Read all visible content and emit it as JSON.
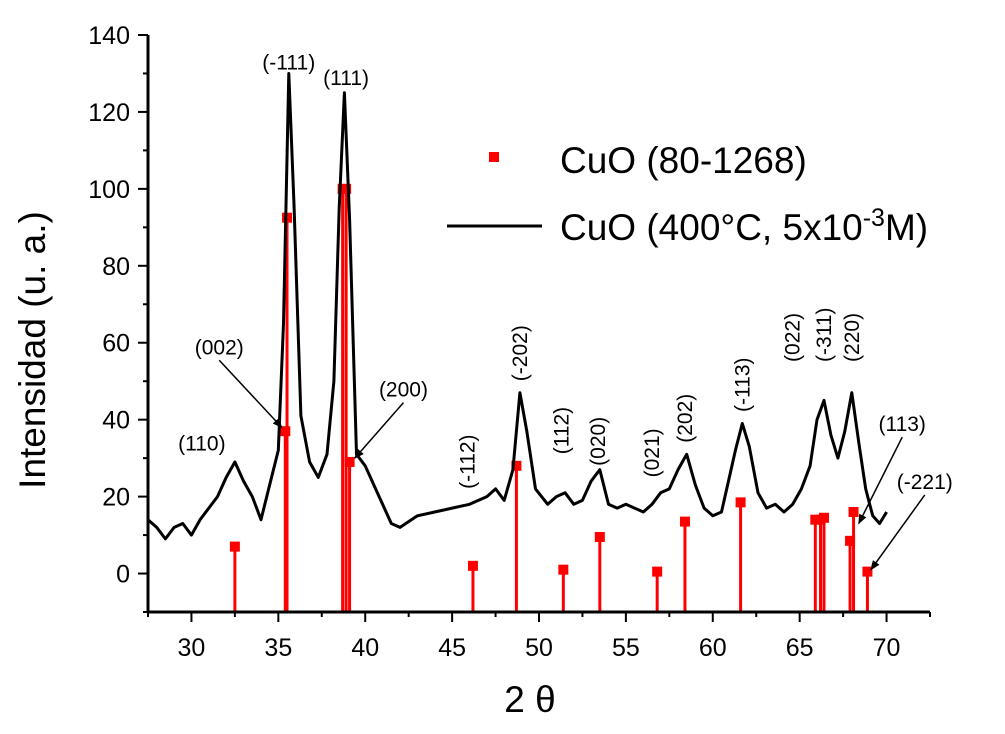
{
  "chart_data": {
    "type": "line",
    "xlabel": "2 θ",
    "ylabel": "Intensidad (u. a.)",
    "xlim": [
      27.5,
      72.5
    ],
    "ylim": [
      -10,
      140
    ],
    "xticks": [
      30,
      35,
      40,
      45,
      50,
      55,
      60,
      65,
      70
    ],
    "yticks": [
      0,
      20,
      40,
      60,
      80,
      100,
      120,
      140
    ],
    "legend": {
      "placement": "top-right",
      "entries": [
        {
          "label": "CuO (80-1268)",
          "marker": "square",
          "color": "#ff0000"
        },
        {
          "label_base": "CuO (400°C, 5x10",
          "label_sup": "-3",
          "label_end": "M)",
          "marker": "line",
          "color": "#000000"
        }
      ]
    },
    "series": [
      {
        "name": "CuO (80-1268)",
        "style": "stick",
        "color": "#ff0000",
        "x": [
          32.5,
          35.4,
          35.5,
          38.7,
          38.9,
          39.1,
          46.2,
          48.7,
          51.4,
          53.5,
          56.8,
          58.4,
          61.6,
          65.9,
          66.2,
          66.4,
          67.9,
          68.1,
          68.9
        ],
        "y": [
          7,
          37,
          92.5,
          100,
          100,
          29,
          2,
          28,
          1,
          9.5,
          0.5,
          13.5,
          18.5,
          14,
          14,
          14.5,
          8.5,
          16,
          0.5
        ]
      },
      {
        "name": "CuO (400°C, 5x10-3M)",
        "style": "line",
        "color": "#000000",
        "x": [
          27.5,
          28.0,
          28.5,
          29.0,
          29.5,
          30.0,
          30.5,
          31.0,
          31.5,
          32.0,
          32.5,
          33.0,
          33.5,
          34.0,
          34.5,
          35.0,
          35.3,
          35.6,
          35.9,
          36.3,
          36.8,
          37.3,
          37.8,
          38.2,
          38.5,
          38.8,
          39.1,
          39.5,
          40.0,
          40.5,
          41.0,
          41.5,
          42.0,
          43.0,
          44.0,
          45.0,
          46.0,
          47.0,
          47.5,
          48.0,
          48.5,
          48.9,
          49.3,
          49.8,
          50.5,
          51.0,
          51.5,
          52.0,
          52.5,
          53.0,
          53.5,
          54.0,
          54.5,
          55.0,
          55.5,
          56.0,
          56.5,
          57.0,
          57.5,
          58.0,
          58.5,
          59.0,
          59.5,
          60.0,
          60.5,
          61.0,
          61.3,
          61.7,
          62.1,
          62.6,
          63.1,
          63.6,
          64.1,
          64.6,
          65.1,
          65.6,
          66.0,
          66.4,
          66.8,
          67.2,
          67.6,
          68.0,
          68.4,
          68.8,
          69.2,
          69.6,
          70.0
        ],
        "y": [
          14,
          12,
          9,
          12,
          13,
          10,
          14,
          17,
          20,
          25,
          29,
          24,
          20,
          14,
          23,
          32,
          65,
          130,
          96,
          41,
          29,
          25,
          31,
          50,
          95,
          125,
          92,
          31,
          28,
          23,
          18,
          13,
          12,
          15,
          16,
          17,
          18,
          20,
          22,
          19,
          27,
          47,
          37,
          22,
          18,
          20,
          21,
          18,
          19,
          24,
          27,
          18,
          17,
          18,
          17,
          16,
          18,
          21,
          22,
          27,
          31,
          23,
          17,
          15,
          16,
          26,
          32,
          39,
          33,
          21,
          17,
          18,
          16,
          18,
          22,
          28,
          40,
          45,
          36,
          30,
          37,
          47,
          34,
          22,
          15,
          13,
          16
        ]
      }
    ],
    "annotations": [
      {
        "text": "(-111)",
        "x": 35.6,
        "y": 131,
        "rotate": 0
      },
      {
        "text": "(111)",
        "x": 38.9,
        "y": 127,
        "rotate": 0
      },
      {
        "text": "(110)",
        "x": 30.6,
        "y": 32,
        "rotate": 0
      },
      {
        "text": "(002)",
        "x": 31.6,
        "y": 57,
        "rotate": 0,
        "arrow_to": [
          35.2,
          38
        ]
      },
      {
        "text": "(200)",
        "x": 42.2,
        "y": 46,
        "rotate": 0,
        "arrow_to": [
          39.4,
          30
        ]
      },
      {
        "text": "(-112)",
        "x": 46.3,
        "y": 22,
        "rotate": -90
      },
      {
        "text": "(-202)",
        "x": 49.3,
        "y": 50,
        "rotate": -90
      },
      {
        "text": "(112)",
        "x": 51.7,
        "y": 31,
        "rotate": -90
      },
      {
        "text": "(020)",
        "x": 53.8,
        "y": 28,
        "rotate": -90
      },
      {
        "text": "(021)",
        "x": 56.9,
        "y": 25,
        "rotate": -90
      },
      {
        "text": "(202)",
        "x": 58.8,
        "y": 34,
        "rotate": -90
      },
      {
        "text": "(-113)",
        "x": 62.1,
        "y": 42,
        "rotate": -90
      },
      {
        "text": "(022)",
        "x": 65.0,
        "y": 55,
        "rotate": -90
      },
      {
        "text": "(-311)",
        "x": 66.8,
        "y": 55,
        "rotate": -90
      },
      {
        "text": "(220)",
        "x": 68.4,
        "y": 55,
        "rotate": -90
      },
      {
        "text": "(113)",
        "x": 70.9,
        "y": 37,
        "rotate": 0,
        "arrow_to": [
          68.4,
          13
        ]
      },
      {
        "text": "(-221)",
        "x": 72.2,
        "y": 22,
        "rotate": 0,
        "arrow_to": [
          69.1,
          1
        ]
      }
    ]
  }
}
